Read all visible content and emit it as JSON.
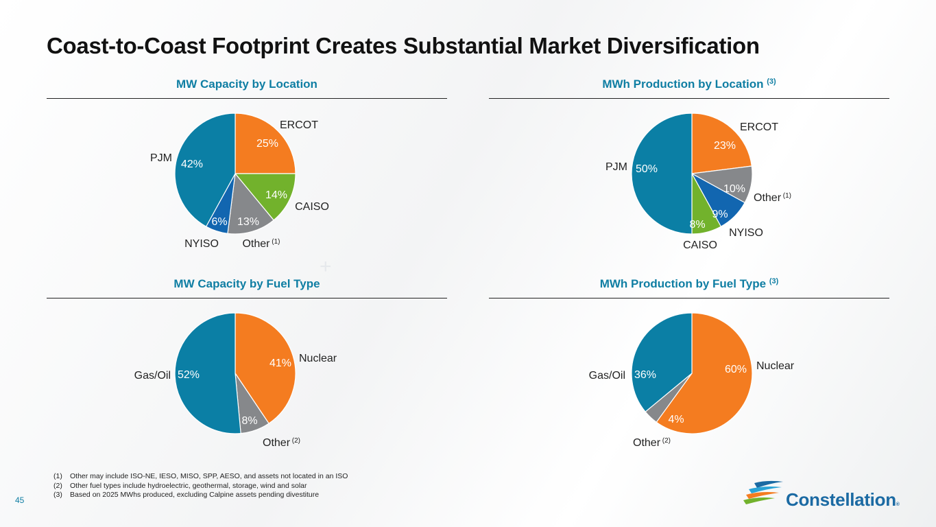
{
  "title": "Coast-to-Coast Footprint Creates Substantial Market Diversification",
  "page_number": "45",
  "logo": {
    "text": "Constellation",
    "reg": "®"
  },
  "footnotes": [
    {
      "num": "(1)",
      "text": "Other may include ISO-NE, IESO, MISO, SPP, AESO, and assets not located in an ISO"
    },
    {
      "num": "(2)",
      "text": "Other fuel types include hydroelectric, geothermal, storage, wind and solar"
    },
    {
      "num": "(3)",
      "text": "Based on 2025 MWhs produced, excluding Calpine assets pending divestiture"
    }
  ],
  "colors": {
    "PJM": "#0b7fa5",
    "ERCOT": "#f47c20",
    "CAISO": "#72b22c",
    "Other": "#86888b",
    "NYISO": "#1266b0",
    "Nuclear": "#f47c20",
    "Gas/Oil": "#0b7fa5"
  },
  "chart_data": [
    {
      "type": "pie",
      "title": "MW Capacity by Location",
      "title_sup": "",
      "slices": [
        {
          "label": "ERCOT",
          "sup": "",
          "value": 25,
          "pct": "25%"
        },
        {
          "label": "CAISO",
          "sup": "",
          "value": 14,
          "pct": "14%"
        },
        {
          "label": "Other",
          "sup": "(1)",
          "value": 13,
          "pct": "13%"
        },
        {
          "label": "NYISO",
          "sup": "",
          "value": 6,
          "pct": "6%"
        },
        {
          "label": "PJM",
          "sup": "",
          "value": 42,
          "pct": "42%"
        }
      ]
    },
    {
      "type": "pie",
      "title": "MWh Production by Location",
      "title_sup": "(3)",
      "slices": [
        {
          "label": "ERCOT",
          "sup": "",
          "value": 23,
          "pct": "23%"
        },
        {
          "label": "Other",
          "sup": "(1)",
          "value": 10,
          "pct": "10%"
        },
        {
          "label": "NYISO",
          "sup": "",
          "value": 9,
          "pct": "9%"
        },
        {
          "label": "CAISO",
          "sup": "",
          "value": 8,
          "pct": "8%"
        },
        {
          "label": "PJM",
          "sup": "",
          "value": 50,
          "pct": "50%"
        }
      ]
    },
    {
      "type": "pie",
      "title": "MW Capacity by Fuel Type",
      "title_sup": "",
      "slices": [
        {
          "label": "Nuclear",
          "sup": "",
          "value": 41,
          "pct": "41%"
        },
        {
          "label": "Other",
          "sup": "(2)",
          "value": 8,
          "pct": "8%"
        },
        {
          "label": "Gas/Oil",
          "sup": "",
          "value": 52,
          "pct": "52%"
        }
      ]
    },
    {
      "type": "pie",
      "title": "MWh Production by Fuel Type",
      "title_sup": "(3)",
      "slices": [
        {
          "label": "Nuclear",
          "sup": "",
          "value": 60,
          "pct": "60%"
        },
        {
          "label": "Other",
          "sup": "(2)",
          "value": 4,
          "pct": "4%"
        },
        {
          "label": "Gas/Oil",
          "sup": "",
          "value": 36,
          "pct": "36%"
        }
      ]
    }
  ]
}
